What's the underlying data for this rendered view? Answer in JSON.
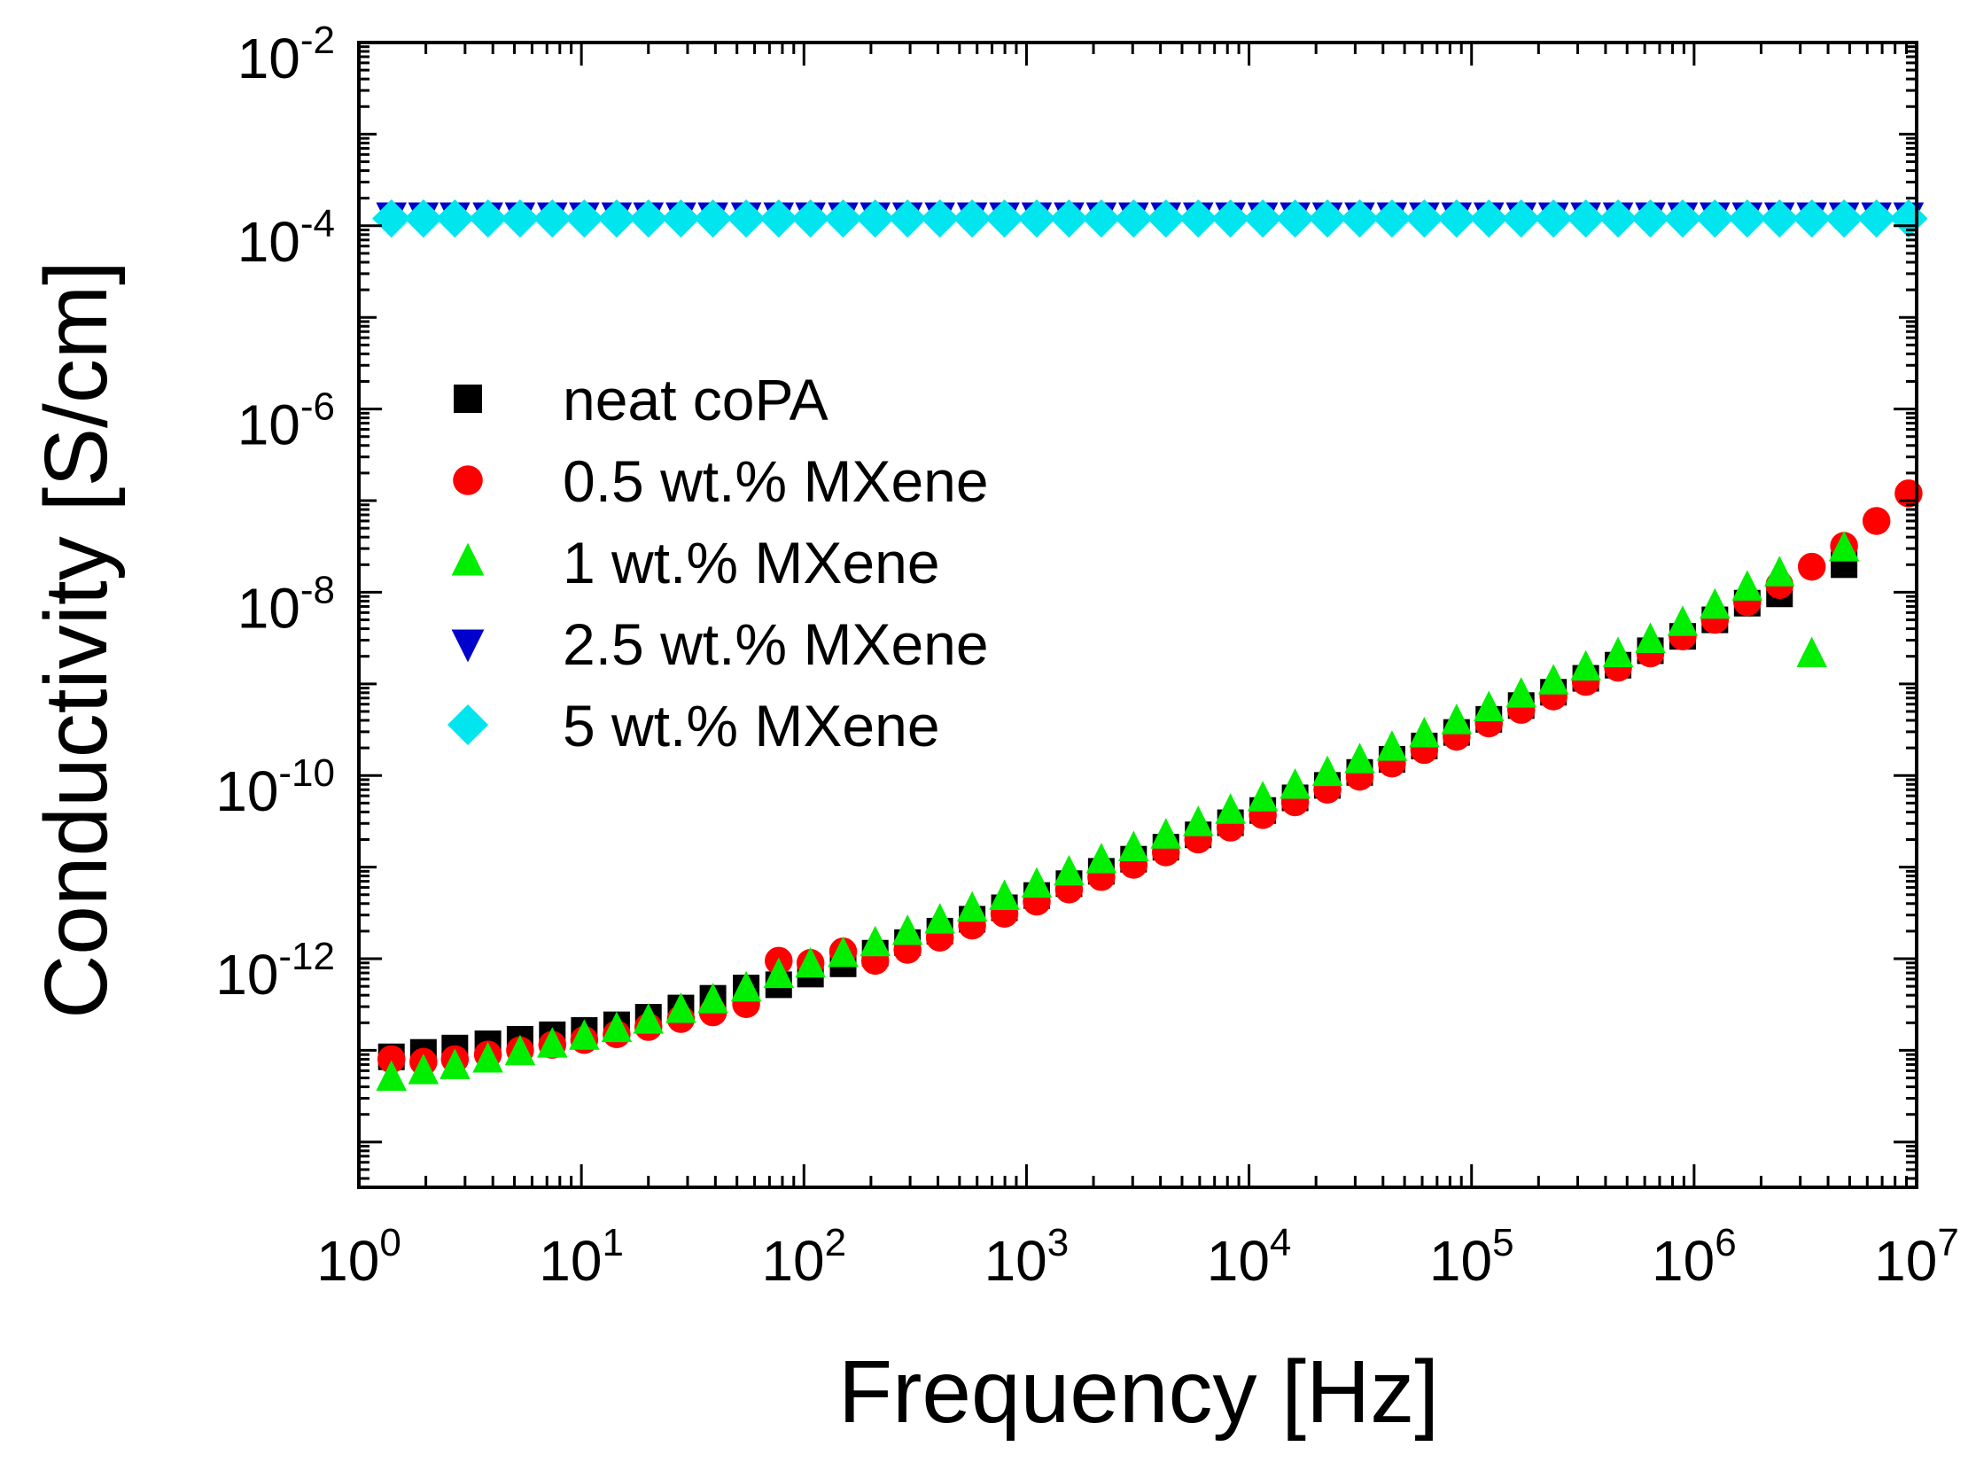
{
  "chart_data": {
    "type": "scatter",
    "title": "",
    "xlabel": "Frequency [Hz]",
    "ylabel": "Conductivity [S/cm]",
    "x_scale": "log",
    "y_scale": "log",
    "xlim": [
      1,
      10000000
    ],
    "ylim": [
      3.2e-15,
      0.01
    ],
    "x_ticks": [
      {
        "value": 1,
        "base": "10",
        "exp": "0"
      },
      {
        "value": 10,
        "base": "10",
        "exp": "1"
      },
      {
        "value": 100,
        "base": "10",
        "exp": "2"
      },
      {
        "value": 1000,
        "base": "10",
        "exp": "3"
      },
      {
        "value": 10000,
        "base": "10",
        "exp": "4"
      },
      {
        "value": 100000,
        "base": "10",
        "exp": "5"
      },
      {
        "value": 1000000,
        "base": "10",
        "exp": "6"
      },
      {
        "value": 10000000,
        "base": "10",
        "exp": "7"
      }
    ],
    "y_ticks": [
      {
        "value": 1e-12,
        "base": "10",
        "exp": "-12"
      },
      {
        "value": 1e-10,
        "base": "10",
        "exp": "-10"
      },
      {
        "value": 1e-08,
        "base": "10",
        "exp": "-8"
      },
      {
        "value": 1e-06,
        "base": "10",
        "exp": "-6"
      },
      {
        "value": 0.0001,
        "base": "10",
        "exp": "-4"
      },
      {
        "value": 0.01,
        "base": "10",
        "exp": "-2"
      }
    ],
    "grid": false,
    "legend_position": "left-middle",
    "series": [
      {
        "name": "neat coPA",
        "marker": "square",
        "color": "#000000",
        "x": [
          1.4,
          1.95,
          2.7,
          3.8,
          5.3,
          7.4,
          10.3,
          14.4,
          20,
          28,
          39,
          55,
          77,
          107,
          150,
          209,
          292,
          408,
          570,
          796,
          1112,
          1553,
          2169,
          3029,
          4231,
          5910,
          8255,
          11530,
          16110,
          22500,
          31430,
          43900,
          61320,
          85650,
          119600,
          167100,
          233400,
          326000,
          455300,
          636000,
          888300,
          1240000,
          1733000,
          2420000,
          4720000
        ],
        "y": [
          8.5e-14,
          9.5e-14,
          1.06e-13,
          1.18e-13,
          1.32e-13,
          1.48e-13,
          1.65e-13,
          1.9e-13,
          2.3e-13,
          2.9e-13,
          3.7e-13,
          4.8e-13,
          5.2e-13,
          6.8e-13,
          8.8e-13,
          1.15e-12,
          1.5e-12,
          2e-12,
          2.7e-12,
          3.6e-12,
          4.9e-12,
          6.6e-12,
          9e-12,
          1.22e-11,
          1.65e-11,
          2.25e-11,
          3.05e-11,
          4.15e-11,
          5.7e-11,
          7.8e-11,
          1.08e-10,
          1.5e-10,
          2.1e-10,
          2.95e-10,
          4.1e-10,
          5.8e-10,
          8.1e-10,
          1.15e-09,
          1.6e-09,
          2.3e-09,
          3.3e-09,
          5e-09,
          7.6e-09,
          9.6e-09,
          2e-08
        ]
      },
      {
        "name": "0.5 wt.% MXene",
        "marker": "circle",
        "color": "#ff0000",
        "x": [
          1.4,
          1.95,
          2.7,
          3.8,
          5.3,
          7.4,
          10.3,
          14.4,
          20,
          28,
          39,
          55,
          77,
          107,
          150,
          209,
          292,
          408,
          570,
          796,
          1112,
          1553,
          2169,
          3029,
          4231,
          5910,
          8255,
          11530,
          16110,
          22500,
          31430,
          43900,
          61320,
          85650,
          119600,
          167100,
          233400,
          326000,
          455300,
          636000,
          888300,
          1240000,
          1733000,
          2420000,
          3380000,
          4720000,
          6600000,
          9200000
        ],
        "y": [
          8e-14,
          7.5e-14,
          8e-14,
          9e-14,
          1e-13,
          1.15e-13,
          1.3e-13,
          1.5e-13,
          1.8e-13,
          2.2e-13,
          2.6e-13,
          3.2e-13,
          9.5e-13,
          9e-13,
          1.2e-12,
          9.5e-13,
          1.25e-12,
          1.7e-12,
          2.3e-12,
          3.1e-12,
          4.2e-12,
          5.7e-12,
          7.8e-12,
          1.06e-11,
          1.45e-11,
          2e-11,
          2.7e-11,
          3.7e-11,
          5.1e-11,
          7e-11,
          9.7e-11,
          1.35e-10,
          1.9e-10,
          2.65e-10,
          3.7e-10,
          5.2e-10,
          7.3e-10,
          1.05e-09,
          1.5e-09,
          2.15e-09,
          3.3e-09,
          5e-09,
          7.8e-09,
          1.2e-08,
          1.9e-08,
          3.2e-08,
          6e-08,
          1.2e-07
        ]
      },
      {
        "name": "1 wt.% MXene",
        "marker": "triangle-up",
        "color": "#00ee00",
        "x": [
          1.4,
          1.95,
          2.7,
          3.8,
          5.3,
          7.4,
          10.3,
          14.4,
          20,
          28,
          39,
          55,
          77,
          107,
          150,
          209,
          292,
          408,
          570,
          796,
          1112,
          1553,
          2169,
          3029,
          4231,
          5910,
          8255,
          11530,
          16110,
          22500,
          31430,
          43900,
          61320,
          85650,
          119600,
          167100,
          233400,
          326000,
          455300,
          636000,
          888300,
          1240000,
          1733000,
          2420000,
          3380000,
          4720000
        ],
        "y": [
          5e-14,
          5.9e-14,
          6.7e-14,
          7.9e-14,
          9.5e-14,
          1.15e-13,
          1.4e-13,
          1.7e-13,
          2.1e-13,
          2.75e-13,
          3.5e-13,
          4.7e-13,
          6.6e-13,
          8.6e-13,
          1.12e-12,
          1.47e-12,
          1.95e-12,
          2.6e-12,
          3.5e-12,
          4.7e-12,
          6.4e-12,
          8.7e-12,
          1.18e-11,
          1.6e-11,
          2.2e-11,
          3e-11,
          4.1e-11,
          5.6e-11,
          7.7e-11,
          1.06e-10,
          1.46e-10,
          2e-10,
          2.8e-10,
          3.9e-10,
          5.4e-10,
          7.6e-10,
          1.06e-09,
          1.5e-09,
          2.1e-09,
          3e-09,
          4.6e-09,
          7.1e-09,
          1.12e-08,
          1.6e-08,
          2.1e-09,
          3e-08
        ]
      },
      {
        "name": "2.5 wt.% MXene",
        "marker": "triangle-down",
        "color": "#0000cc",
        "x": [
          1.4,
          1.95,
          2.7,
          3.8,
          5.3,
          7.4,
          10.3,
          14.4,
          20,
          28,
          39,
          55,
          77,
          107,
          150,
          209,
          292,
          408,
          570,
          796,
          1112,
          1553,
          2169,
          3029,
          4231,
          5910,
          8255,
          11530,
          16110,
          22500,
          31430,
          43900,
          61320,
          85650,
          119600,
          167100,
          233400,
          326000,
          455300,
          636000,
          888300,
          1240000,
          1733000,
          2420000,
          3380000,
          4720000,
          6600000,
          9200000
        ],
        "y": [
          0.00013,
          0.00013,
          0.00013,
          0.00013,
          0.00013,
          0.00013,
          0.00013,
          0.00013,
          0.00013,
          0.00013,
          0.00013,
          0.00013,
          0.00013,
          0.00013,
          0.00013,
          0.00013,
          0.00013,
          0.00013,
          0.00013,
          0.00013,
          0.00013,
          0.00013,
          0.00013,
          0.00013,
          0.00013,
          0.00013,
          0.00013,
          0.00013,
          0.00013,
          0.00013,
          0.00013,
          0.00013,
          0.00013,
          0.00013,
          0.00013,
          0.00013,
          0.00013,
          0.00013,
          0.00013,
          0.00013,
          0.00013,
          0.00013,
          0.00013,
          0.00013,
          0.00013,
          0.00013,
          0.00013,
          0.00013
        ]
      },
      {
        "name": "5 wt.% MXene",
        "marker": "diamond",
        "color": "#00e5ee",
        "x": [
          1.4,
          1.95,
          2.7,
          3.8,
          5.3,
          7.4,
          10.3,
          14.4,
          20,
          28,
          39,
          55,
          77,
          107,
          150,
          209,
          292,
          408,
          570,
          796,
          1112,
          1553,
          2169,
          3029,
          4231,
          5910,
          8255,
          11530,
          16110,
          22500,
          31430,
          43900,
          61320,
          85650,
          119600,
          167100,
          233400,
          326000,
          455300,
          636000,
          888300,
          1240000,
          1733000,
          2420000,
          3380000,
          4720000,
          6600000,
          9200000
        ],
        "y": [
          0.00012,
          0.00012,
          0.00012,
          0.00012,
          0.00012,
          0.00012,
          0.00012,
          0.00012,
          0.00012,
          0.00012,
          0.00012,
          0.00012,
          0.00012,
          0.00012,
          0.00012,
          0.00012,
          0.00012,
          0.00012,
          0.00012,
          0.00012,
          0.00012,
          0.00012,
          0.00012,
          0.00012,
          0.00012,
          0.00012,
          0.00012,
          0.00012,
          0.00012,
          0.00012,
          0.00012,
          0.00012,
          0.00012,
          0.00012,
          0.00012,
          0.00012,
          0.00012,
          0.00012,
          0.00012,
          0.00012,
          0.00012,
          0.00012,
          0.00012,
          0.00012,
          0.00012,
          0.00012,
          0.00012,
          0.00012
        ]
      }
    ]
  }
}
